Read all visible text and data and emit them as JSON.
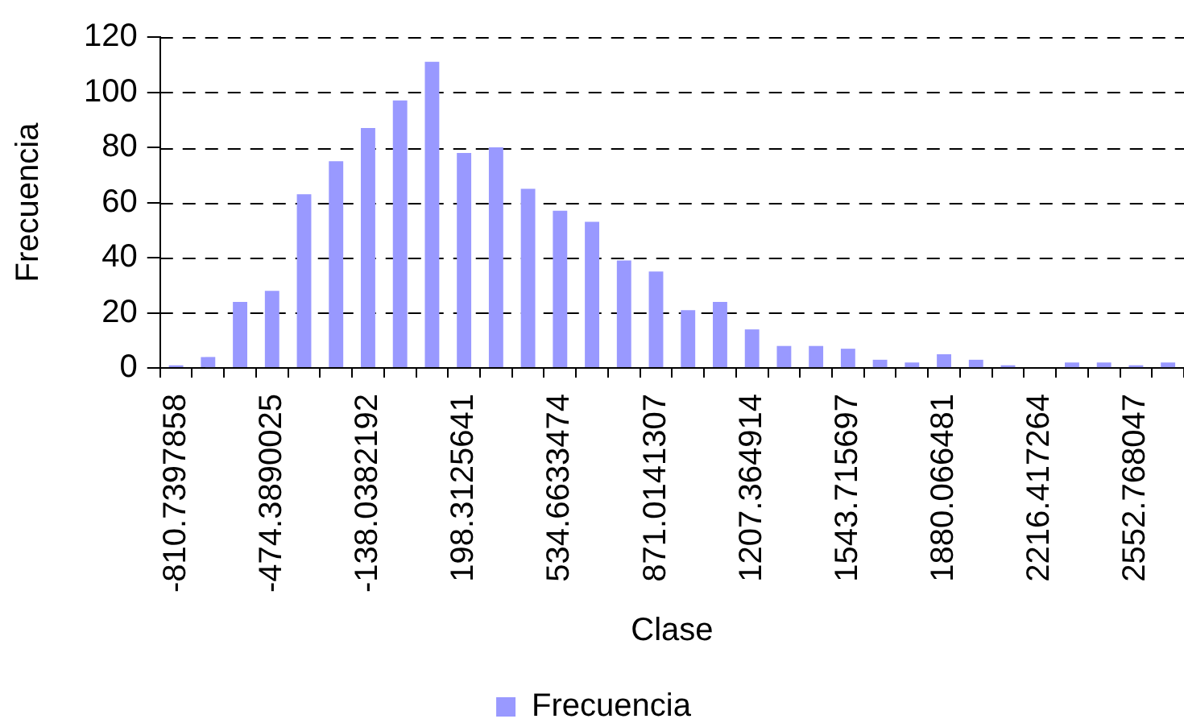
{
  "chart_data": {
    "type": "bar",
    "xlabel": "Clase",
    "ylabel": "Frecuencia",
    "categories": [
      "-810.7397858",
      null,
      null,
      "-474.3890025",
      null,
      null,
      "-138.0382192",
      null,
      null,
      "198.3125641",
      null,
      null,
      "534.6633474",
      null,
      null,
      "871.0141307",
      null,
      null,
      "1207.364914",
      null,
      null,
      "1543.715697",
      null,
      null,
      "1880.066481",
      null,
      null,
      "2216.417264",
      null,
      null,
      "2552.768047",
      null
    ],
    "series": [
      {
        "name": "Frecuencia",
        "color": "#9999ff",
        "values": [
          1,
          4,
          24,
          28,
          63,
          75,
          87,
          97,
          111,
          78,
          80,
          65,
          57,
          53,
          39,
          35,
          21,
          24,
          14,
          8,
          8,
          7,
          3,
          2,
          5,
          3,
          1,
          0,
          2,
          2,
          1,
          2
        ]
      }
    ],
    "ylim": [
      0,
      120
    ],
    "yticks": [
      0,
      20,
      40,
      60,
      80,
      100,
      120
    ],
    "grid": "y",
    "legend": "bottom"
  }
}
